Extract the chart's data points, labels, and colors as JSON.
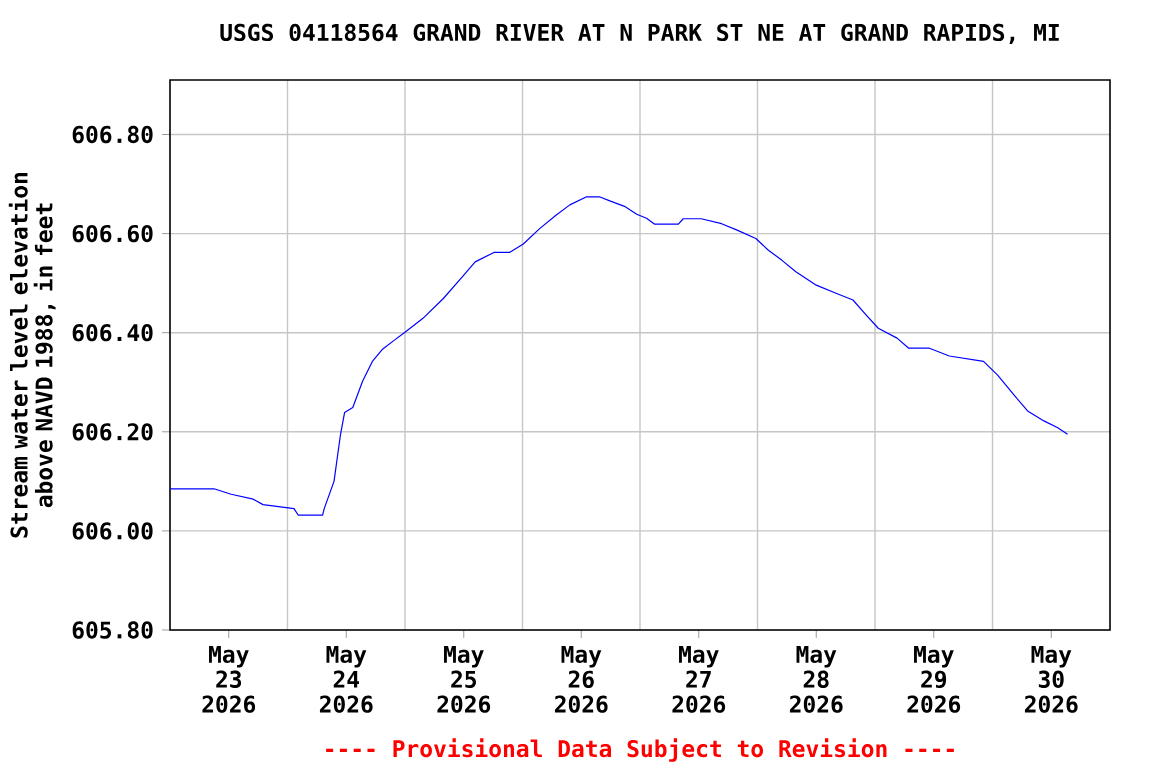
{
  "chart_data": {
    "type": "line",
    "title": "USGS 04118564 GRAND RIVER AT N PARK ST NE AT GRAND RAPIDS, MI",
    "ylabel": "Stream water level elevation above NAVD 1988, in feet",
    "annotations": [
      "---- Provisional Data Subject to Revision ----"
    ],
    "x": [
      "2026-05-23T00:00",
      "2026-05-23T09:00",
      "2026-05-23T12:30",
      "2026-05-23T17:00",
      "2026-05-23T19:00",
      "2026-05-24T01:20",
      "2026-05-24T02:10",
      "2026-05-24T07:10",
      "2026-05-24T07:30",
      "2026-05-24T09:30",
      "2026-05-24T10:50",
      "2026-05-24T11:40",
      "2026-05-24T13:20",
      "2026-05-24T15:20",
      "2026-05-24T17:20",
      "2026-05-24T19:20",
      "2026-05-24T21:50",
      "2026-05-25T00:00",
      "2026-05-25T03:40",
      "2026-05-25T07:50",
      "2026-05-25T11:50",
      "2026-05-25T14:20",
      "2026-05-25T18:10",
      "2026-05-25T21:20",
      "2026-05-26T00:10",
      "2026-05-26T03:30",
      "2026-05-26T06:50",
      "2026-05-26T09:40",
      "2026-05-26T13:00",
      "2026-05-26T15:50",
      "2026-05-26T17:50",
      "2026-05-26T20:50",
      "2026-05-26T23:20",
      "2026-05-27T01:20",
      "2026-05-27T03:00",
      "2026-05-27T07:50",
      "2026-05-27T08:50",
      "2026-05-27T12:30",
      "2026-05-27T16:40",
      "2026-05-27T19:50",
      "2026-05-27T23:40",
      "2026-05-28T02:10",
      "2026-05-28T05:00",
      "2026-05-28T07:50",
      "2026-05-28T12:00",
      "2026-05-28T16:10",
      "2026-05-28T19:30",
      "2026-05-28T22:10",
      "2026-05-29T00:40",
      "2026-05-29T04:30",
      "2026-05-29T06:50",
      "2026-05-29T11:00",
      "2026-05-29T15:10",
      "2026-05-29T22:10",
      "2026-05-30T01:00",
      "2026-05-30T04:20",
      "2026-05-30T07:10",
      "2026-05-30T10:30",
      "2026-05-30T13:20",
      "2026-05-30T15:20"
    ],
    "series": [
      {
        "color": "#0000ff",
        "values": [
          606.085,
          606.085,
          606.074,
          606.064,
          606.053,
          606.045,
          606.032,
          606.032,
          606.045,
          606.1,
          606.195,
          606.239,
          606.249,
          606.302,
          606.342,
          606.366,
          606.385,
          606.401,
          606.429,
          606.469,
          606.514,
          606.543,
          606.562,
          606.562,
          606.579,
          606.61,
          606.637,
          606.658,
          606.674,
          606.674,
          606.666,
          606.655,
          606.639,
          606.631,
          606.619,
          606.619,
          606.63,
          606.63,
          606.62,
          606.607,
          606.59,
          606.567,
          606.546,
          606.523,
          606.496,
          606.479,
          606.466,
          606.436,
          606.409,
          606.389,
          606.369,
          606.369,
          606.353,
          606.342,
          606.315,
          606.275,
          606.242,
          606.222,
          606.208,
          606.195
        ]
      }
    ],
    "xlim": [
      "2026-05-23T00:00",
      "2026-05-31T00:00"
    ],
    "ylim": [
      605.8,
      606.91
    ],
    "xticks": [
      {
        "value": "2026-05-23T12:00",
        "label": "May 23 2026"
      },
      {
        "value": "2026-05-24T12:00",
        "label": "May 24 2026"
      },
      {
        "value": "2026-05-25T12:00",
        "label": "May 25 2026"
      },
      {
        "value": "2026-05-26T12:00",
        "label": "May 26 2026"
      },
      {
        "value": "2026-05-27T12:00",
        "label": "May 27 2026"
      },
      {
        "value": "2026-05-28T12:00",
        "label": "May 28 2026"
      },
      {
        "value": "2026-05-29T12:00",
        "label": "May 29 2026"
      },
      {
        "value": "2026-05-30T12:00",
        "label": "May 30 2026"
      },
      {
        "value": "2026-05-24T00:00",
        "label": null
      },
      {
        "value": "2026-05-25T00:00",
        "label": null
      },
      {
        "value": "2026-05-26T00:00",
        "label": null
      },
      {
        "value": "2026-05-27T00:00",
        "label": null
      },
      {
        "value": "2026-05-28T00:00",
        "label": null
      },
      {
        "value": "2026-05-29T00:00",
        "label": null
      },
      {
        "value": "2026-05-30T00:00",
        "label": null
      }
    ],
    "yticks": [
      {
        "value": 605.8,
        "label": "605.80"
      },
      {
        "value": 606.0,
        "label": "606.00"
      },
      {
        "value": 606.2,
        "label": "606.20"
      },
      {
        "value": 606.4,
        "label": "606.40"
      },
      {
        "value": 606.6,
        "label": "606.60"
      },
      {
        "value": 606.8,
        "label": "606.80"
      }
    ],
    "grid": true,
    "marker": "none",
    "line_style": "solid"
  }
}
